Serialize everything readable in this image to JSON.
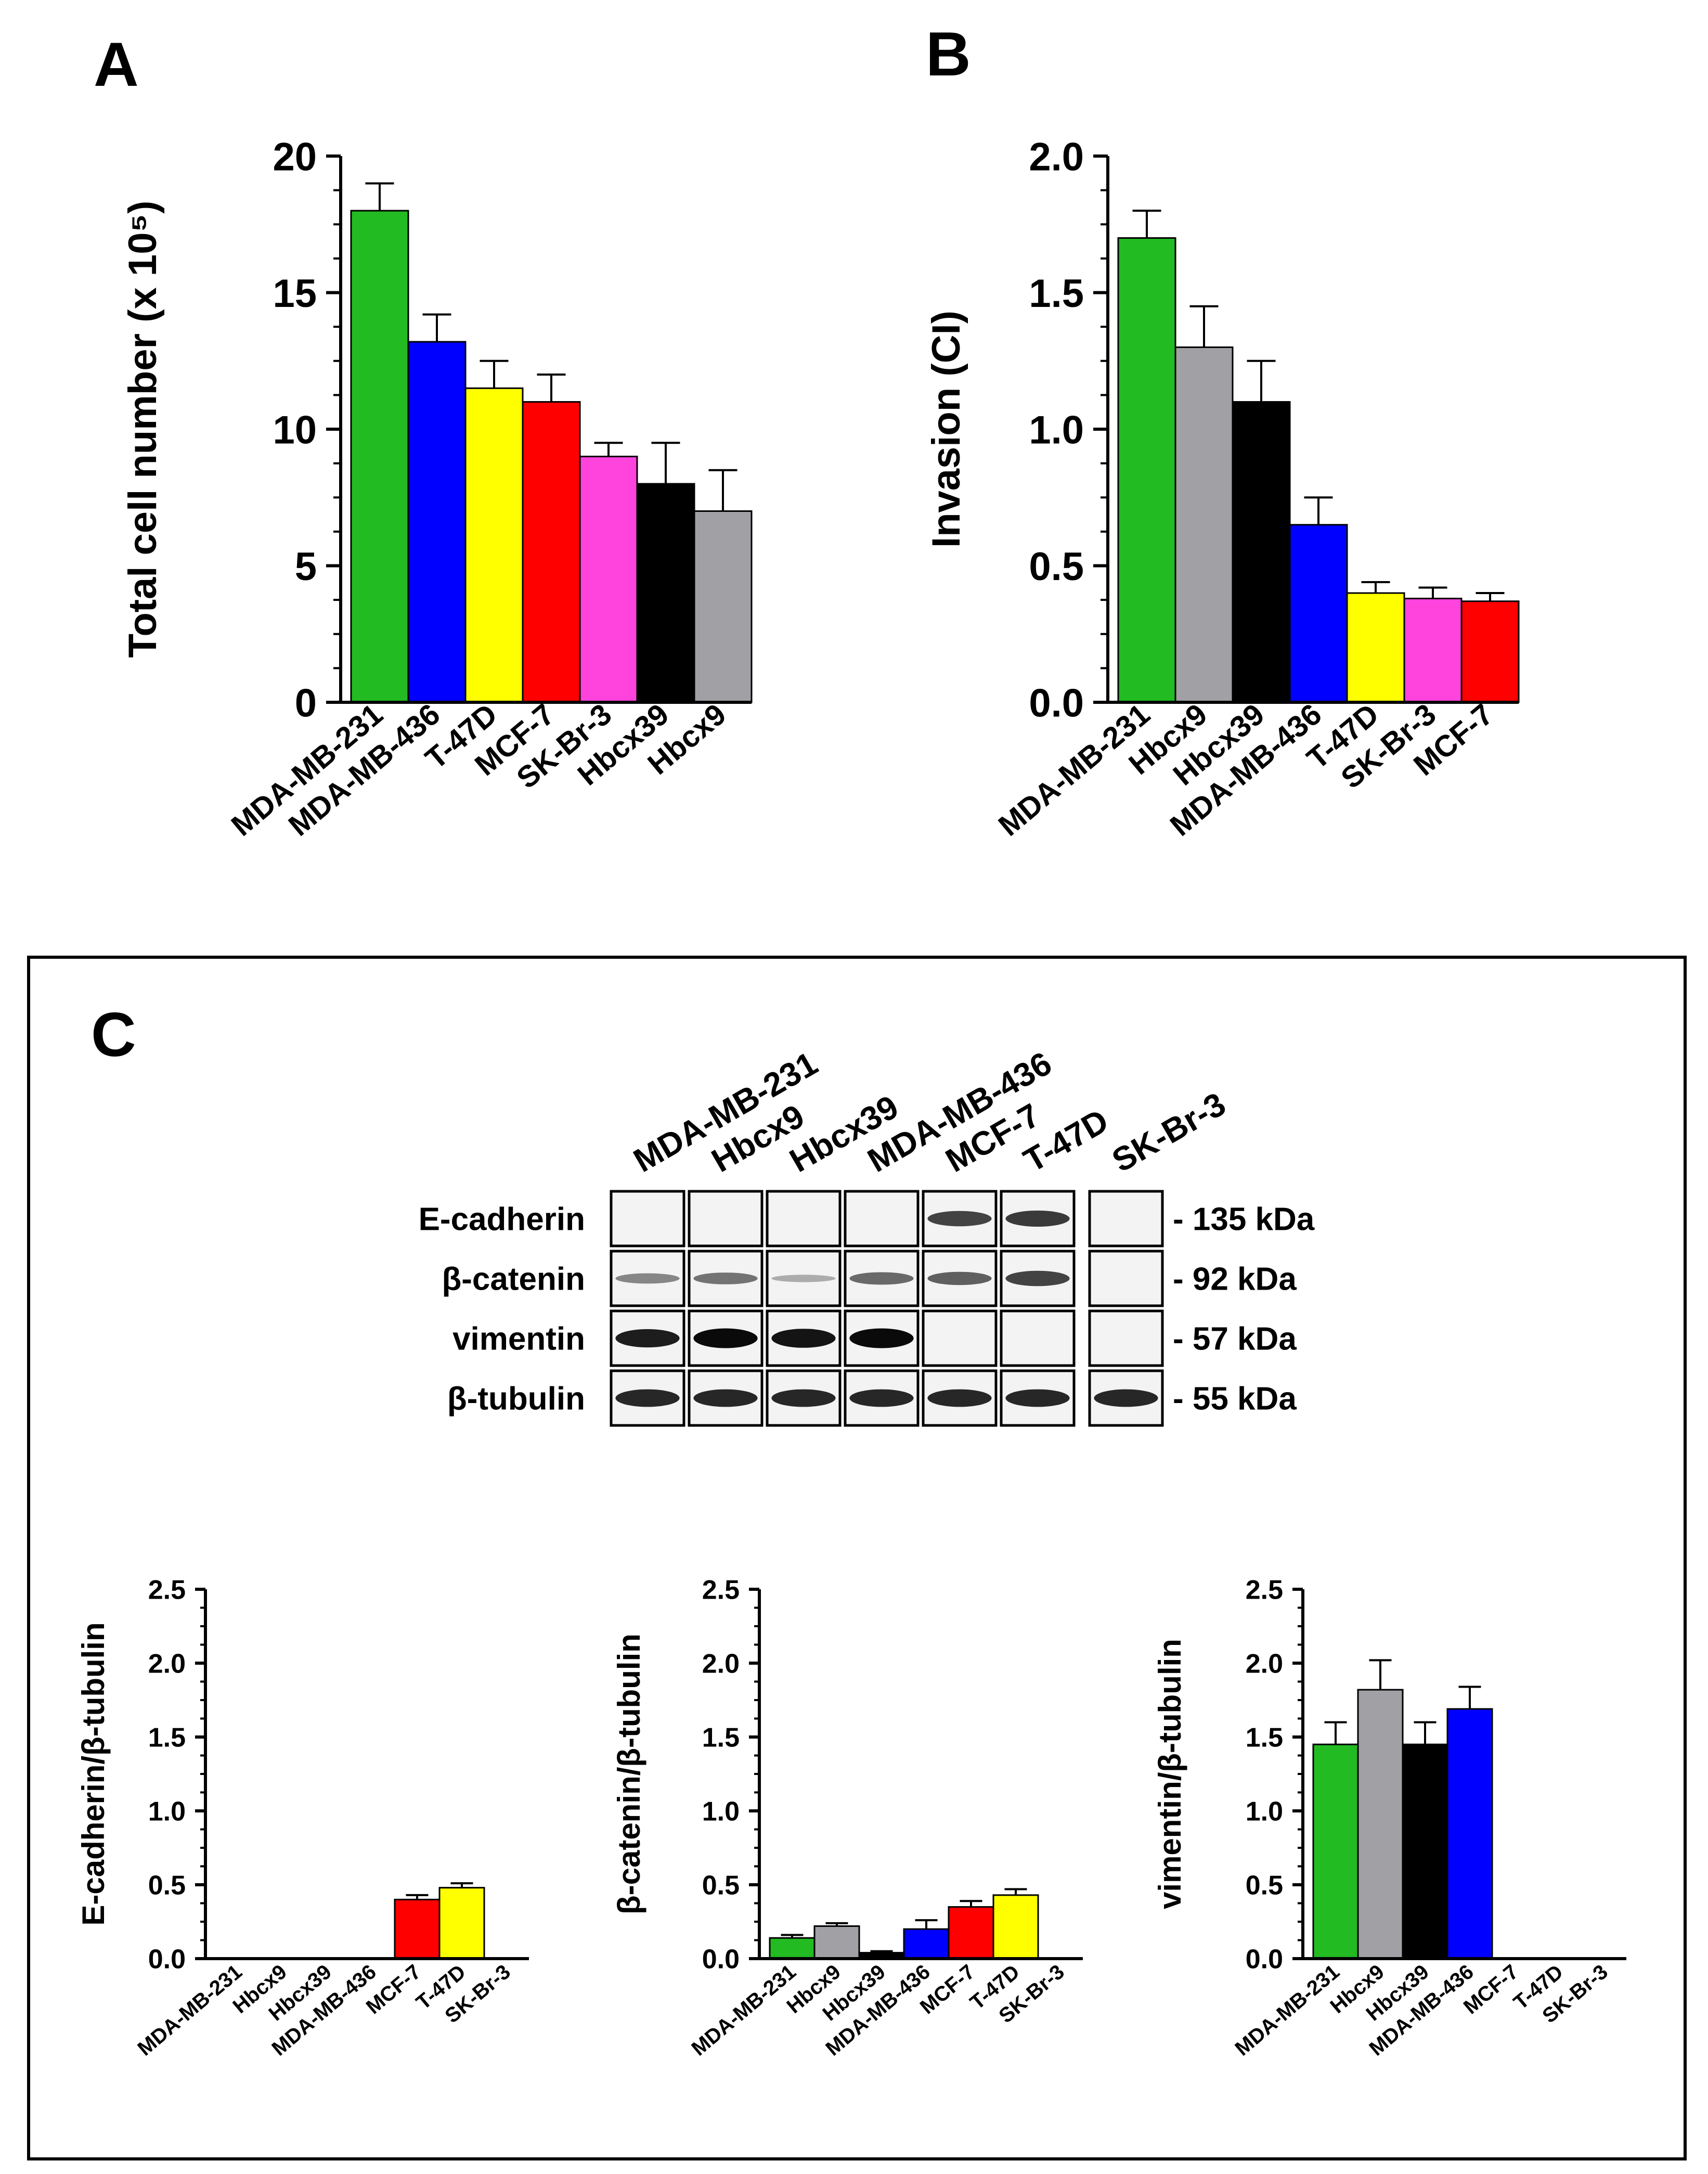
{
  "panels": {
    "a": "A",
    "b": "B",
    "c": "C"
  },
  "western_blot": {
    "lanes": [
      "MDA-MB-231",
      "Hbcx9",
      "Hbcx39",
      "MDA-MB-436",
      "MCF-7",
      "T-47D",
      "SK-Br-3"
    ],
    "rows": [
      {
        "label": "E-cadherin",
        "size": "- 135 kDa",
        "intensity": [
          0,
          0,
          0,
          0,
          0.7,
          0.75,
          0
        ]
      },
      {
        "label": "β-catenin",
        "size": "- 92 kDa",
        "intensity": [
          0.35,
          0.45,
          0.15,
          0.5,
          0.55,
          0.7,
          0
        ]
      },
      {
        "label": "vimentin",
        "size": "- 57 kDa",
        "intensity": [
          0.9,
          1,
          0.95,
          1,
          0,
          0,
          0
        ]
      },
      {
        "label": "β-tubulin",
        "size": "- 55 kDa",
        "intensity": [
          0.85,
          0.85,
          0.85,
          0.85,
          0.85,
          0.85,
          0.85
        ]
      }
    ]
  },
  "chart_data": [
    {
      "id": "A",
      "type": "bar",
      "title": "",
      "xlabel": "",
      "ylabel": "Total cell number (x 10⁵)",
      "ylim": [
        0,
        20
      ],
      "yticks": [
        "0",
        "5",
        "10",
        "15",
        "20"
      ],
      "categories": [
        "MDA-MB-231",
        "MDA-MB-436",
        "T-47D",
        "MCF-7",
        "SK-Br-3",
        "Hbcx39",
        "Hbcx9"
      ],
      "values": [
        18,
        13.2,
        11.5,
        11,
        9,
        8,
        7
      ],
      "errors": [
        1,
        1,
        1,
        1,
        0.5,
        1.5,
        1.5
      ],
      "colors": [
        "#22bb22",
        "#0000ff",
        "#ffff00",
        "#ff0000",
        "#ff44dd",
        "#000000",
        "#a0a0a5"
      ]
    },
    {
      "id": "B",
      "type": "bar",
      "title": "",
      "xlabel": "",
      "ylabel": "Invasion (CI)",
      "ylim": [
        0,
        2
      ],
      "yticks": [
        "0.0",
        "0.5",
        "1.0",
        "1.5",
        "2.0"
      ],
      "categories": [
        "MDA-MB-231",
        "Hbcx9",
        "Hbcx39",
        "MDA-MB-436",
        "T-47D",
        "SK-Br-3",
        "MCF-7"
      ],
      "values": [
        1.7,
        1.3,
        1.1,
        0.65,
        0.4,
        0.38,
        0.37
      ],
      "errors": [
        0.1,
        0.15,
        0.15,
        0.1,
        0.04,
        0.04,
        0.03
      ],
      "colors": [
        "#22bb22",
        "#a0a0a5",
        "#000000",
        "#0000ff",
        "#ffff00",
        "#ff44dd",
        "#ff0000"
      ]
    },
    {
      "id": "C1",
      "type": "bar",
      "title": "",
      "xlabel": "",
      "ylabel": "E-cadherin/β-tubulin",
      "ylim": [
        0,
        2.5
      ],
      "yticks": [
        "0.0",
        "0.5",
        "1.0",
        "1.5",
        "2.0",
        "2.5"
      ],
      "categories": [
        "MDA-MB-231",
        "Hbcx9",
        "Hbcx39",
        "MDA-MB-436",
        "MCF-7",
        "T-47D",
        "SK-Br-3"
      ],
      "values": [
        0,
        0,
        0,
        0,
        0.4,
        0.48,
        0
      ],
      "errors": [
        0,
        0,
        0,
        0,
        0.03,
        0.03,
        0
      ],
      "colors": [
        "#22bb22",
        "#a0a0a5",
        "#000000",
        "#0000ff",
        "#ff0000",
        "#ffff00",
        "#ff44dd"
      ]
    },
    {
      "id": "C2",
      "type": "bar",
      "title": "",
      "xlabel": "",
      "ylabel": "β-catenin/β-tubulin",
      "ylim": [
        0,
        2.5
      ],
      "yticks": [
        "0.0",
        "0.5",
        "1.0",
        "1.5",
        "2.0",
        "2.5"
      ],
      "categories": [
        "MDA-MB-231",
        "Hbcx9",
        "Hbcx39",
        "MDA-MB-436",
        "MCF-7",
        "T-47D",
        "SK-Br-3"
      ],
      "values": [
        0.14,
        0.22,
        0.04,
        0.2,
        0.35,
        0.43,
        0
      ],
      "errors": [
        0.02,
        0.02,
        0.01,
        0.06,
        0.04,
        0.04,
        0
      ],
      "colors": [
        "#22bb22",
        "#a0a0a5",
        "#000000",
        "#0000ff",
        "#ff0000",
        "#ffff00",
        "#ff44dd"
      ]
    },
    {
      "id": "C3",
      "type": "bar",
      "title": "",
      "xlabel": "",
      "ylabel": "vimentin/β-tubulin",
      "ylim": [
        0,
        2.5
      ],
      "yticks": [
        "0.0",
        "0.5",
        "1.0",
        "1.5",
        "2.0",
        "2.5"
      ],
      "categories": [
        "MDA-MB-231",
        "Hbcx9",
        "Hbcx39",
        "MDA-MB-436",
        "MCF-7",
        "T-47D",
        "SK-Br-3"
      ],
      "values": [
        1.45,
        1.82,
        1.45,
        1.69,
        0,
        0,
        0
      ],
      "errors": [
        0.15,
        0.2,
        0.15,
        0.15,
        0,
        0,
        0
      ],
      "colors": [
        "#22bb22",
        "#a0a0a5",
        "#000000",
        "#0000ff",
        "#ff0000",
        "#ffff00",
        "#ff44dd"
      ]
    }
  ]
}
